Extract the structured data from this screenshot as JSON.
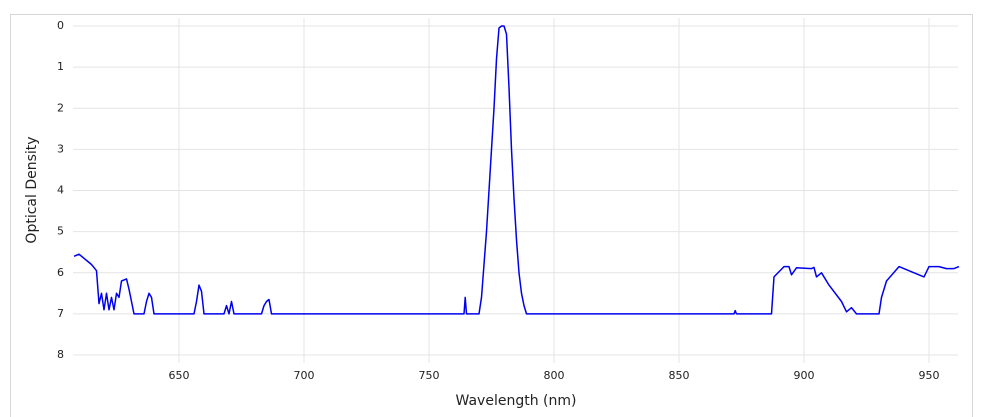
{
  "chart_data": {
    "type": "line",
    "x_label": "Wavelength (nm)",
    "y_label": "Optical Density",
    "x": [
      608,
      610,
      615,
      617,
      618,
      619,
      620,
      621,
      622,
      623,
      624,
      625,
      626,
      627,
      629,
      630,
      631,
      632,
      636,
      637,
      638,
      639,
      640,
      656,
      657,
      658,
      659,
      660,
      668,
      669,
      670,
      671,
      672,
      683,
      684,
      685,
      686,
      687,
      764,
      764.5,
      765,
      770,
      771,
      772,
      773,
      774,
      775,
      776,
      777,
      778,
      779,
      780,
      781,
      782,
      783,
      784,
      785,
      786,
      787,
      788,
      789,
      790,
      872,
      872.5,
      873,
      887,
      888,
      892,
      894,
      895,
      897,
      903,
      904,
      905,
      907,
      910,
      915,
      917,
      919,
      921,
      930,
      931,
      933,
      938,
      948,
      950,
      954,
      957,
      960,
      962
    ],
    "values": [
      5.6,
      5.55,
      5.8,
      5.95,
      6.75,
      6.5,
      6.9,
      6.5,
      6.9,
      6.6,
      6.9,
      6.5,
      6.6,
      6.2,
      6.15,
      6.4,
      6.7,
      7,
      7,
      6.7,
      6.5,
      6.6,
      7,
      7,
      6.7,
      6.3,
      6.45,
      7,
      7,
      6.8,
      7,
      6.7,
      7,
      7,
      6.8,
      6.7,
      6.65,
      7,
      7,
      6.6,
      7,
      7,
      6.6,
      5.8,
      5,
      4,
      3,
      2,
      0.8,
      0.05,
      0,
      0,
      0.2,
      1.5,
      3,
      4.2,
      5.2,
      6,
      6.5,
      6.8,
      7,
      7,
      7,
      6.92,
      7,
      7,
      6.1,
      5.85,
      5.85,
      6.05,
      5.88,
      5.9,
      5.87,
      6.1,
      6,
      6.3,
      6.7,
      6.95,
      6.85,
      7,
      7,
      6.6,
      6.2,
      5.85,
      6.1,
      5.85,
      5.85,
      5.9,
      5.9,
      5.85
    ],
    "color": "#0000ee",
    "xlim": [
      607.6,
      961.6
    ],
    "xticks": [
      650,
      700,
      750,
      800,
      850,
      900,
      950
    ],
    "ylim": [
      8,
      0
    ],
    "yticks": [
      0,
      1,
      2,
      3,
      4,
      5,
      6,
      7,
      8
    ],
    "grid": true
  }
}
